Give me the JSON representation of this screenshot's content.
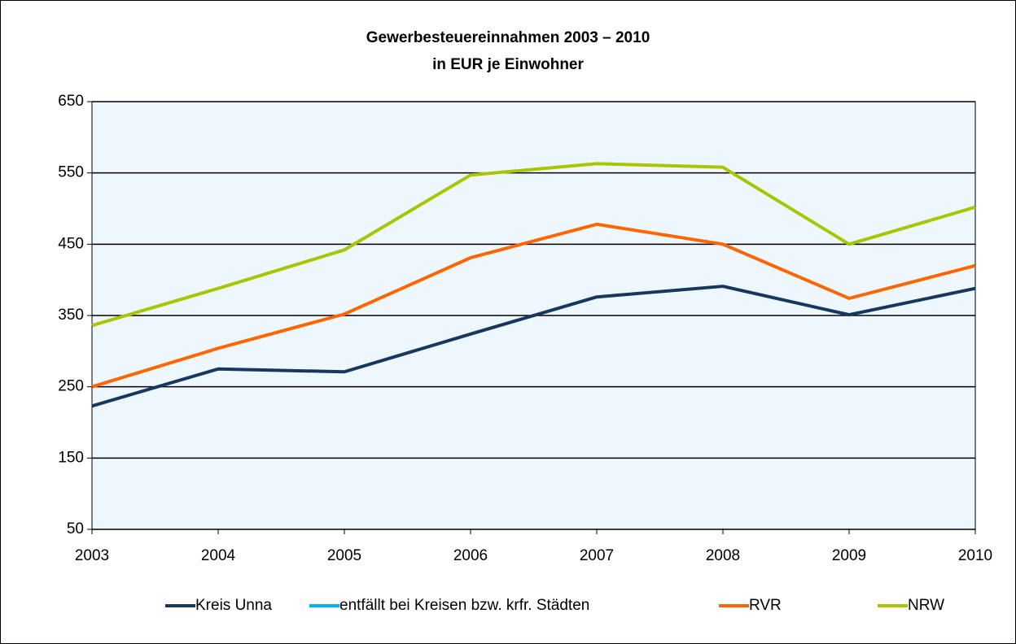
{
  "chart_data": {
    "type": "line",
    "title": "Gewerbesteuereinnahmen 2003 – 2010",
    "subtitle": "in EUR je Einwohner",
    "categories": [
      "2003",
      "2004",
      "2005",
      "2006",
      "2007",
      "2008",
      "2009",
      "2010"
    ],
    "series": [
      {
        "name": "Kreis Unna",
        "color": "#17375e",
        "values": [
          223,
          275,
          271,
          324,
          376,
          391,
          351,
          388
        ]
      },
      {
        "name": "entfällt bei Kreisen bzw. krfr. Städten",
        "color": "#00b0f0",
        "values": [
          null,
          null,
          null,
          null,
          null,
          null,
          null,
          null
        ]
      },
      {
        "name": "RVR",
        "color": "#ff6600",
        "values": [
          250,
          304,
          352,
          431,
          478,
          450,
          374,
          420
        ]
      },
      {
        "name": "NRW",
        "color": "#a8c500",
        "values": [
          336,
          388,
          442,
          547,
          563,
          558,
          450,
          502
        ]
      }
    ],
    "ylim": [
      50,
      650
    ],
    "yticks": [
      50,
      150,
      250,
      350,
      450,
      550,
      650
    ],
    "grid": true,
    "legend": "bottom"
  }
}
